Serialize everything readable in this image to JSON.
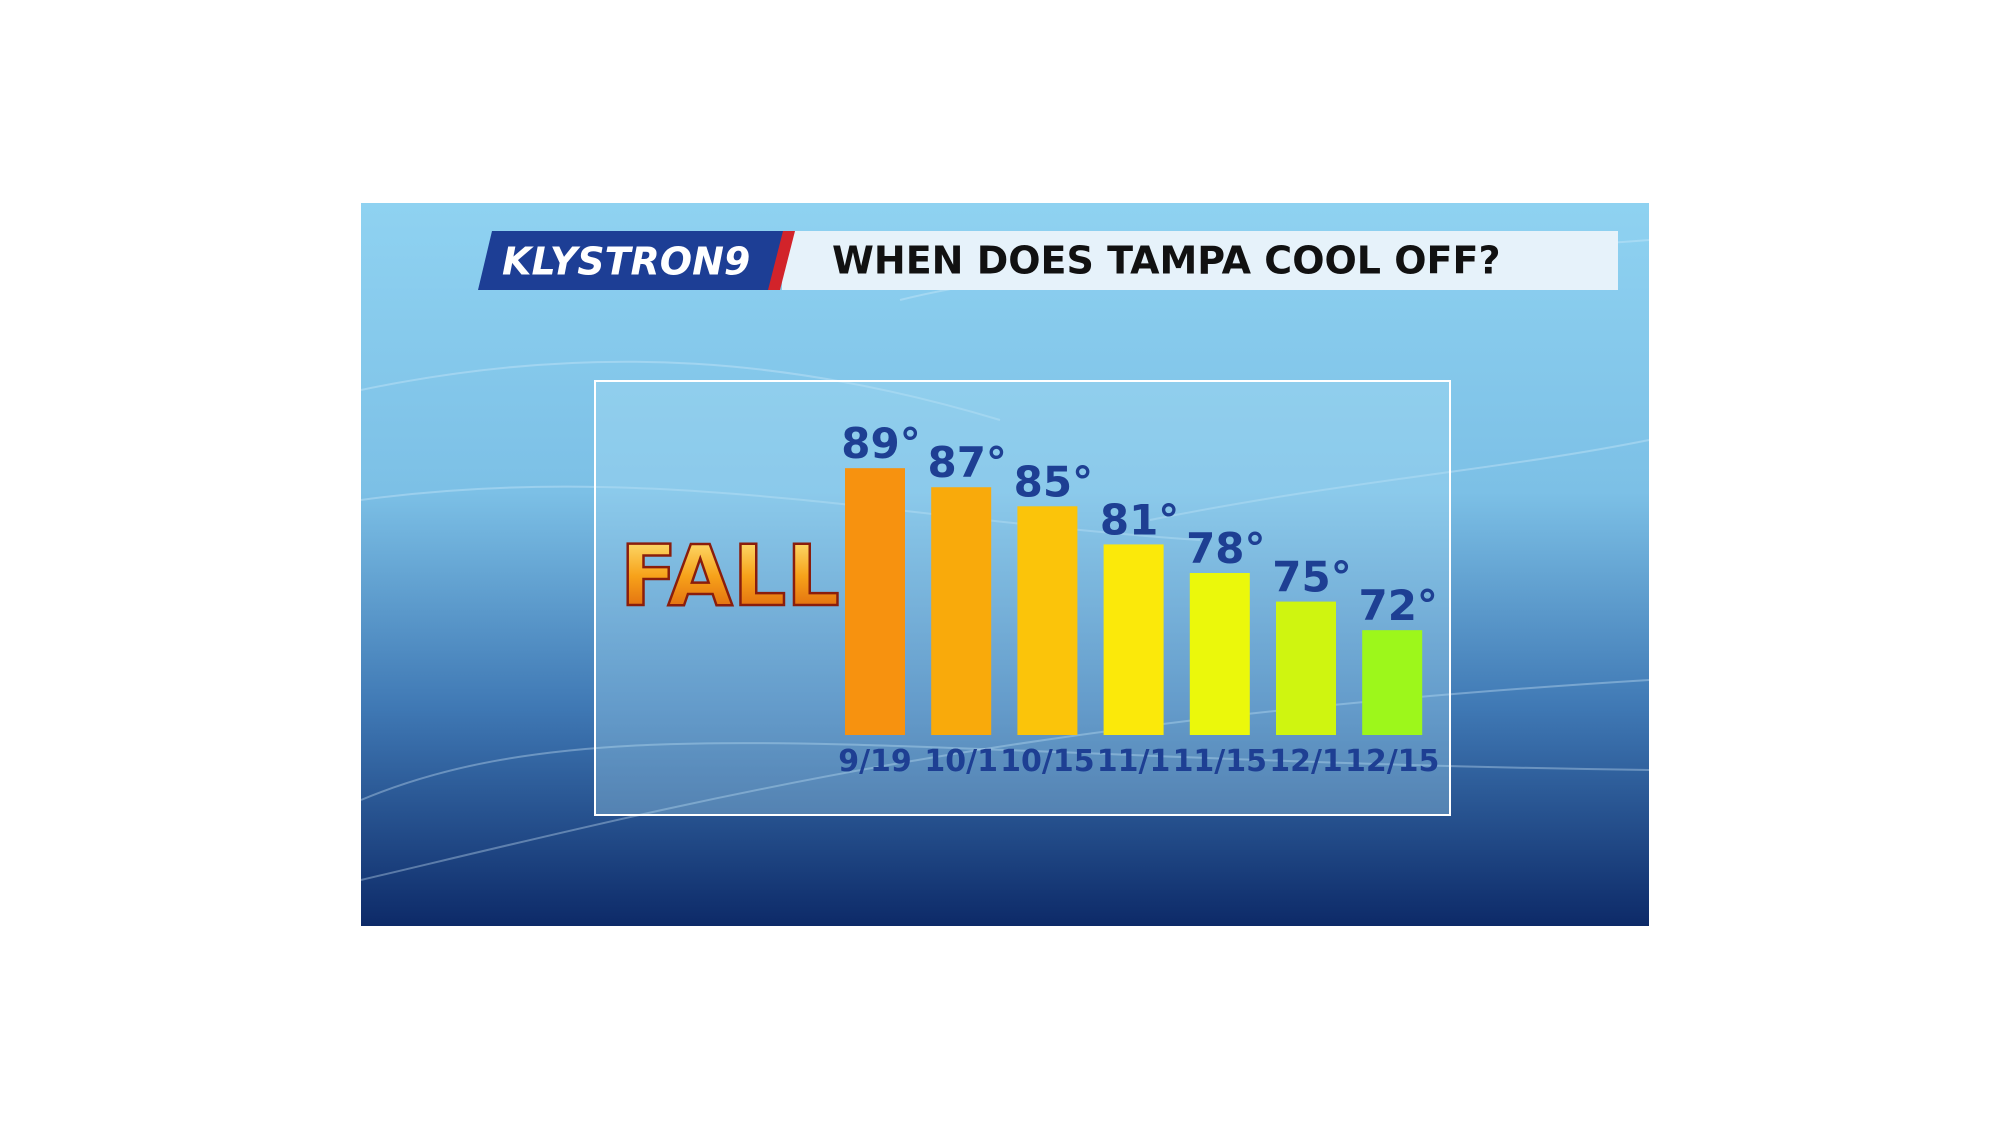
{
  "chart_data": {
    "type": "bar",
    "brand": "KLYSTRON9",
    "title": "WHEN DOES TAMPA COOL OFF?",
    "annotation": "FALL",
    "categories": [
      "9/19",
      "10/1",
      "10/15",
      "11/1",
      "11/15",
      "12/1",
      "12/15"
    ],
    "values": [
      89,
      87,
      85,
      81,
      78,
      75,
      72
    ],
    "value_labels": [
      "89°",
      "87°",
      "85°",
      "81°",
      "78°",
      "75°",
      "72°"
    ],
    "colors": [
      "#f7920f",
      "#f9aa0b",
      "#fbc40a",
      "#fbe90a",
      "#ebf80b",
      "#cff510",
      "#9df71b"
    ],
    "ylim": [
      61,
      95
    ],
    "grid": false
  }
}
